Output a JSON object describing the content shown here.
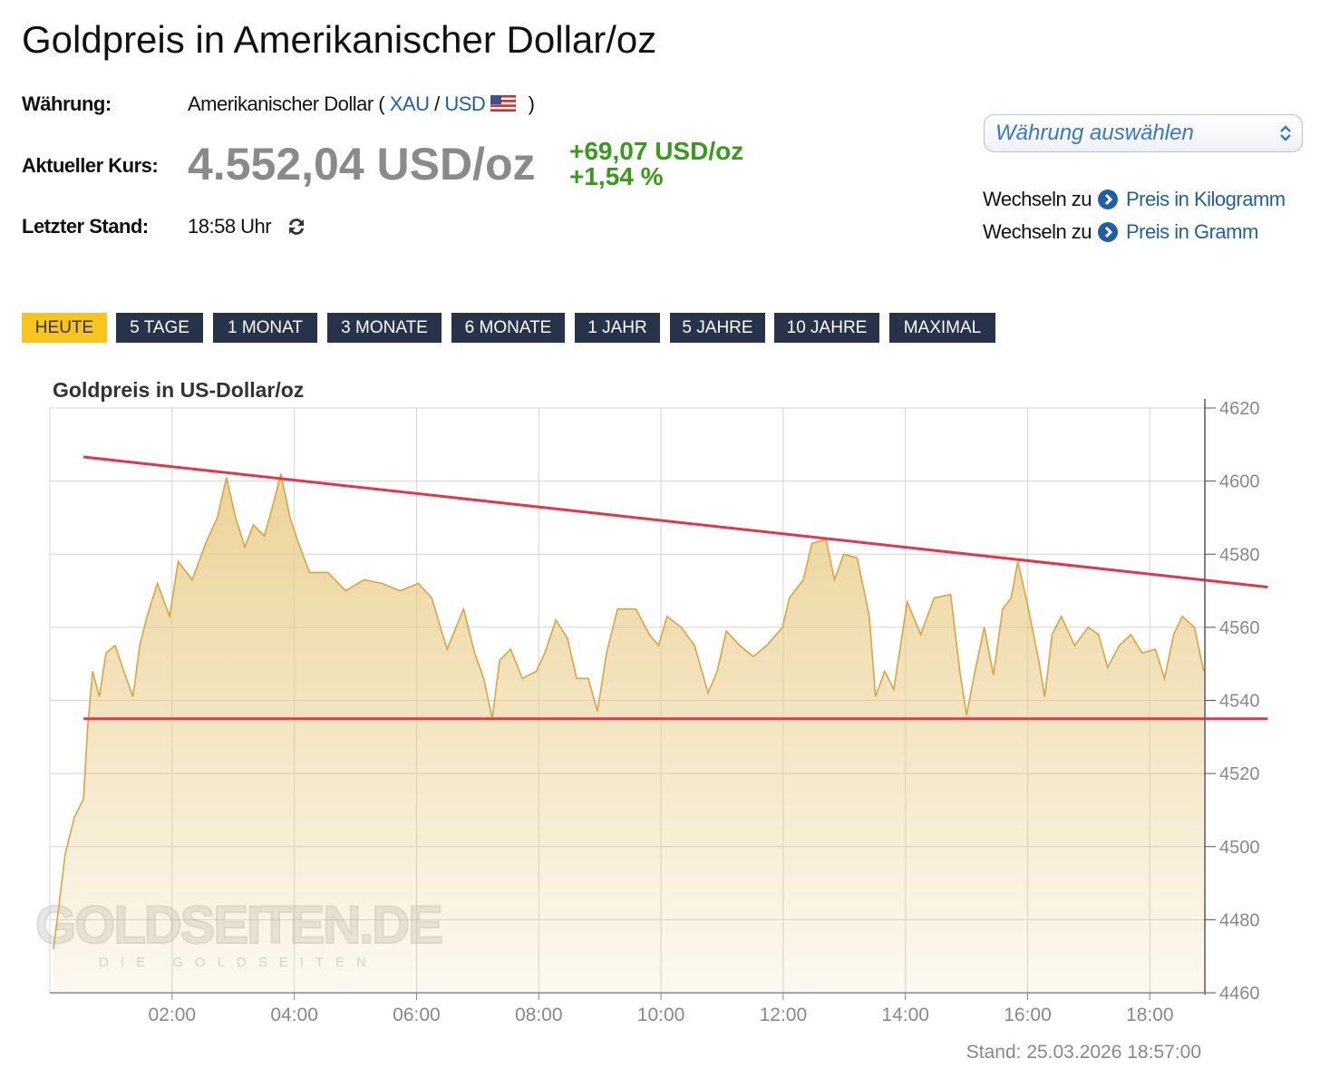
{
  "header": {
    "title": "Goldpreis in Amerikanischer Dollar/oz"
  },
  "info": {
    "currency_label": "Währung:",
    "currency_name": "Amerikanischer Dollar (",
    "currency_code": "XAU",
    "separator": "/",
    "currency_link": "USD",
    "currency_close": ")",
    "price_label": "Aktueller Kurs:",
    "price": "4.552,04 USD/oz",
    "change_abs": "+69,07 USD/oz",
    "change_pct": "+1,54 %",
    "time_label": "Letzter Stand:",
    "time": "18:58 Uhr"
  },
  "select": {
    "placeholder": "Währung auswählen"
  },
  "switch_links": [
    {
      "prefix": "Wechseln zu",
      "label": "Preis in Kilogramm"
    },
    {
      "prefix": "Wechseln zu",
      "label": "Preis in Gramm"
    }
  ],
  "tabs": [
    "HEUTE",
    "5 TAGE",
    "1 MONAT",
    "3 MONATE",
    "6 MONATE",
    "1 JAHR",
    "5 JAHRE",
    "10 JAHRE",
    "MAXIMAL"
  ],
  "active_tab": "HEUTE",
  "chart_data": {
    "type": "area",
    "title": "Goldpreis in US-Dollar/oz",
    "x": [
      0.06,
      0.15,
      0.25,
      0.4,
      0.55,
      0.62,
      0.7,
      0.81,
      0.92,
      1.07,
      1.21,
      1.36,
      1.47,
      1.59,
      1.76,
      1.96,
      2.1,
      2.33,
      2.55,
      2.74,
      2.89,
      3.04,
      3.19,
      3.33,
      3.51,
      3.66,
      3.78,
      3.93,
      4.07,
      4.25,
      4.55,
      4.84,
      5.14,
      5.44,
      5.73,
      6.03,
      6.25,
      6.5,
      6.77,
      6.95,
      7.1,
      7.24,
      7.36,
      7.54,
      7.73,
      7.96,
      8.1,
      8.28,
      8.47,
      8.62,
      8.81,
      8.96,
      9.11,
      9.29,
      9.59,
      9.81,
      9.96,
      10.1,
      10.33,
      10.55,
      10.77,
      10.92,
      11.07,
      11.29,
      11.51,
      11.73,
      11.99,
      12.1,
      12.33,
      12.47,
      12.7,
      12.84,
      12.99,
      13.21,
      13.41,
      13.51,
      13.66,
      13.81,
      14.03,
      14.25,
      14.47,
      14.74,
      14.89,
      15.0,
      15.14,
      15.29,
      15.44,
      15.59,
      15.73,
      15.84,
      15.99,
      16.18,
      16.28,
      16.4,
      16.55,
      16.77,
      16.99,
      17.16,
      17.31,
      17.5,
      17.69,
      17.87,
      18.09,
      18.24,
      18.39,
      18.53,
      18.73,
      18.88
    ],
    "values": [
      4472,
      4484,
      4498,
      4508,
      4513,
      4533,
      4548,
      4541,
      4553,
      4555,
      4548,
      4541,
      4555,
      4563,
      4572,
      4563,
      4578,
      4573,
      4583,
      4590,
      4601,
      4590,
      4582,
      4588,
      4585,
      4594,
      4602,
      4590,
      4583,
      4575,
      4575,
      4570,
      4573,
      4572,
      4570,
      4572,
      4568,
      4554,
      4565,
      4553,
      4546,
      4535,
      4551,
      4554,
      4546,
      4548,
      4553,
      4562,
      4557,
      4546,
      4546,
      4537,
      4553,
      4565,
      4565,
      4558,
      4555,
      4563,
      4560,
      4555,
      4542,
      4548,
      4559,
      4555,
      4552,
      4555,
      4560,
      4568,
      4573,
      4583,
      4584,
      4573,
      4580,
      4579,
      4563,
      4541,
      4548,
      4543,
      4567,
      4558,
      4568,
      4569,
      4548,
      4536,
      4548,
      4560,
      4547,
      4565,
      4568,
      4578,
      4567,
      4551,
      4541,
      4558,
      4563,
      4555,
      4560,
      4558,
      4549,
      4555,
      4558,
      4553,
      4554,
      4546,
      4558,
      4563,
      4560,
      4548
    ],
    "color": "#d9a441",
    "fill": "#e8cc86",
    "trend_lines": [
      {
        "color": "#e8344a",
        "x": [
          0.55,
          19.93
        ],
        "values": [
          4606.6,
          4571
        ]
      },
      {
        "color": "#e8344a",
        "x": [
          0.55,
          19.93
        ],
        "values": [
          4535,
          4535
        ]
      }
    ],
    "xlim": [
      0,
      18.9
    ],
    "ylim": [
      4460,
      4620
    ],
    "xticks": [
      {
        "value": 2,
        "label": "02:00"
      },
      {
        "value": 4,
        "label": "04:00"
      },
      {
        "value": 6,
        "label": "06:00"
      },
      {
        "value": 8,
        "label": "08:00"
      },
      {
        "value": 10,
        "label": "10:00"
      },
      {
        "value": 12,
        "label": "12:00"
      },
      {
        "value": 14,
        "label": "14:00"
      },
      {
        "value": 16,
        "label": "16:00"
      },
      {
        "value": 18,
        "label": "18:00"
      }
    ],
    "yticks": [
      4460,
      4480,
      4500,
      4520,
      4540,
      4560,
      4580,
      4600,
      4620
    ],
    "grid": true,
    "y_axis_side": "right",
    "watermark": "GOLDSEITEN.DE",
    "watermark_subtitle": "DIE GOLDSEITEN",
    "footnote": "Stand: 25.03.2026 18:57:00"
  }
}
